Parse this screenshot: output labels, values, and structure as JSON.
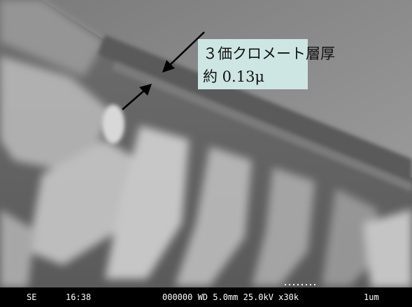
{
  "annotation": {
    "lines": [
      "３価クロメート層厚",
      "約 0.13μ"
    ]
  },
  "footer": {
    "mode": "SE",
    "time": "16:38",
    "info": "000000 WD 5.0mm 25.0kV x30k",
    "scale": "1um"
  }
}
